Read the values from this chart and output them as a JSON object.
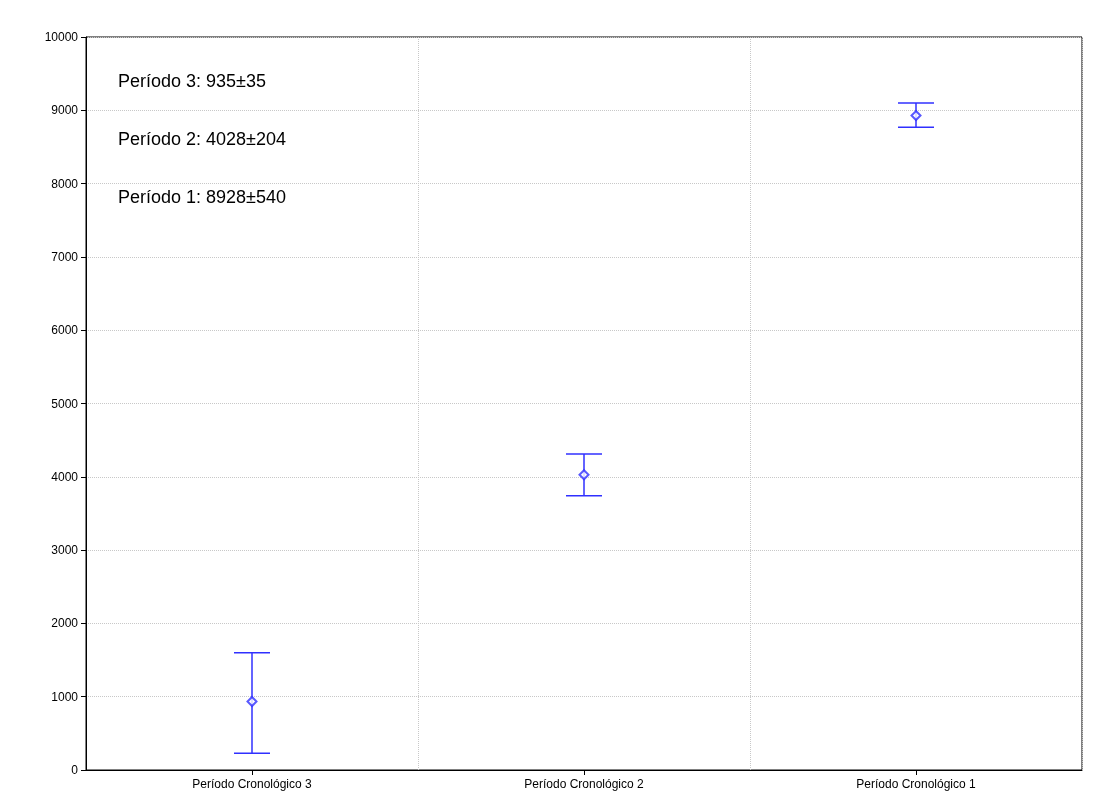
{
  "chart_data": {
    "type": "scatter",
    "categories": [
      "Período Cronológico 3",
      "Período Cronológico 2",
      "Período Cronológico 1"
    ],
    "series": [
      {
        "color": "#3030ff",
        "values": [
          935,
          4028,
          8928
        ],
        "errors": [
          [
            230,
            1600
          ],
          [
            3740,
            4310
          ],
          [
            8770,
            9100
          ]
        ]
      }
    ],
    "ylim": [
      0,
      10000
    ],
    "yticks": [
      0,
      1000,
      2000,
      3000,
      4000,
      5000,
      6000,
      7000,
      8000,
      9000,
      10000
    ],
    "grid": true,
    "marker": "diamond",
    "annotations": [
      "Período 3: 935±35",
      "Período 2: 4028±204",
      "Período 1: 8928±540"
    ]
  }
}
